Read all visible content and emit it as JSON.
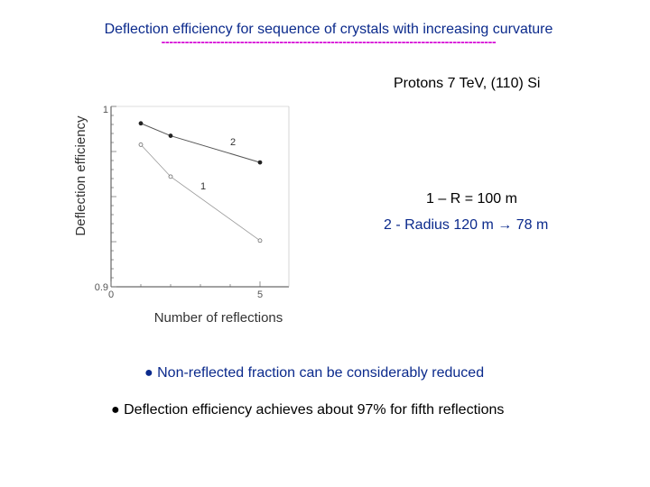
{
  "slide": {
    "title": "Deflection efficiency for sequence of crystals with increasing curvature",
    "divider": "-------------------------------------------------------------------------------------",
    "subtitle": "Protons 7 TeV, (110) Si",
    "legend_line_1": "1 – R = 100 m",
    "legend_line_2": "2 -  Radius 120 m → 78 m",
    "bullets": [
      "● Non-reflected fraction can be considerably reduced",
      "● Deflection efficiency achieves about 97% for fifth reflections"
    ],
    "colors": {
      "title": "#0b2a8c",
      "divider": "#d400d4",
      "blue_text": "#0b2a8c"
    }
  },
  "chart_data": {
    "type": "line",
    "xlabel": "Number of reflections",
    "ylabel": "Deflection efficiency",
    "xlim": [
      0,
      5
    ],
    "ylim": [
      0.9,
      1.0
    ],
    "x_tick_labels": [
      "0",
      "5"
    ],
    "y_tick_labels": [
      "0.9",
      "1"
    ],
    "series": [
      {
        "name": "1",
        "x": [
          1,
          2,
          5
        ],
        "y": [
          0.98,
          0.962,
          0.926
        ],
        "marker": "open-circle"
      },
      {
        "name": "2",
        "x": [
          1,
          2,
          5
        ],
        "y": [
          0.992,
          0.985,
          0.97
        ],
        "marker": "filled-circle"
      }
    ]
  }
}
